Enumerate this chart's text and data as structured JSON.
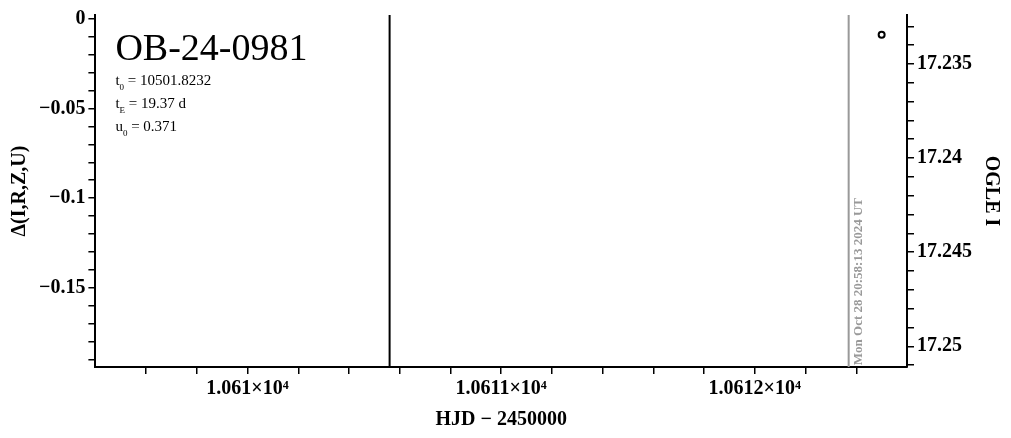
{
  "chart_data": {
    "type": "scatter",
    "title": "OB-24-0981",
    "xlabel": "HJD − 2450000",
    "ylabel": "Δ(I,R,Z,U)",
    "y2label": "OGLE I",
    "annotations": [
      "t$_{0}$ = 10501.8232",
      "t$_{E}$ = 19.37 d",
      "u$_{0}$ = 0.371",
      {
        "text": "Mon Oct 28 20:58:13 2024 UT",
        "x": 10612.37,
        "y": -0.193
      }
    ],
    "series": [
      {
        "x": [
          10612.5
        ],
        "values": [
          -0.009
        ],
        "color": "#000000"
      }
    ],
    "marker": "circle",
    "grid": false,
    "xlim": [
      10609.4,
      10612.6
    ],
    "xticks": [
      {
        "value": 10609.6,
        "label": null
      },
      {
        "value": 10609.8,
        "label": null
      },
      {
        "value": 10610,
        "label": "1.061×10⁴"
      },
      {
        "value": 10610.2,
        "label": null
      },
      {
        "value": 10610.4,
        "label": null
      },
      {
        "value": 10610.6,
        "label": null
      },
      {
        "value": 10610.8,
        "label": null
      },
      {
        "value": 10611,
        "label": "1.0611×10⁴"
      },
      {
        "value": 10611.2,
        "label": null
      },
      {
        "value": 10611.4,
        "label": null
      },
      {
        "value": 10611.6,
        "label": null
      },
      {
        "value": 10611.8,
        "label": null
      },
      {
        "value": 10612,
        "label": "1.0612×10⁴"
      },
      {
        "value": 10612.2,
        "label": null
      },
      {
        "value": 10612.4,
        "label": null
      }
    ],
    "ylim": [
      -0.194,
      0.002
    ],
    "yticks": [
      0,
      {
        "value": -0.01,
        "label": null
      },
      {
        "value": -0.02,
        "label": null
      },
      {
        "value": -0.03,
        "label": null
      },
      {
        "value": -0.04,
        "label": null
      },
      {
        "value": -0.05,
        "label": "−0.05"
      },
      {
        "value": -0.06,
        "label": null
      },
      {
        "value": -0.07,
        "label": null
      },
      {
        "value": -0.08,
        "label": null
      },
      {
        "value": -0.09,
        "label": null
      },
      {
        "value": -0.1,
        "label": "−0.1"
      },
      {
        "value": -0.11,
        "label": null
      },
      {
        "value": -0.12,
        "label": null
      },
      {
        "value": -0.13,
        "label": null
      },
      {
        "value": -0.14,
        "label": null
      },
      {
        "value": -0.15,
        "label": "−0.15"
      },
      {
        "value": -0.16,
        "label": null
      },
      {
        "value": -0.17,
        "label": null
      },
      {
        "value": -0.18,
        "label": null
      },
      {
        "value": -0.19,
        "label": null
      }
    ],
    "y2lim": [
      17.2511,
      17.2324
    ],
    "y2ticks": [
      {
        "value": 17.233,
        "label": null
      },
      {
        "value": 17.234,
        "label": null
      },
      17.235,
      {
        "value": 17.236,
        "label": null
      },
      {
        "value": 17.237,
        "label": null
      },
      {
        "value": 17.238,
        "label": null
      },
      {
        "value": 17.239,
        "label": null
      },
      17.24,
      {
        "value": 17.241,
        "label": null
      },
      {
        "value": 17.242,
        "label": null
      },
      {
        "value": 17.243,
        "label": null
      },
      {
        "value": 17.244,
        "label": null
      },
      17.245,
      {
        "value": 17.246,
        "label": null
      },
      {
        "value": 17.247,
        "label": null
      },
      {
        "value": 17.248,
        "label": null
      },
      {
        "value": 17.249,
        "label": null
      },
      17.25,
      {
        "value": 17.251,
        "label": null
      }
    ],
    "ref_lines": [
      {
        "axis": "x",
        "value": 10610.56,
        "color": "#000000"
      },
      {
        "axis": "x",
        "value": 10612.37,
        "color": "#999999"
      }
    ]
  }
}
